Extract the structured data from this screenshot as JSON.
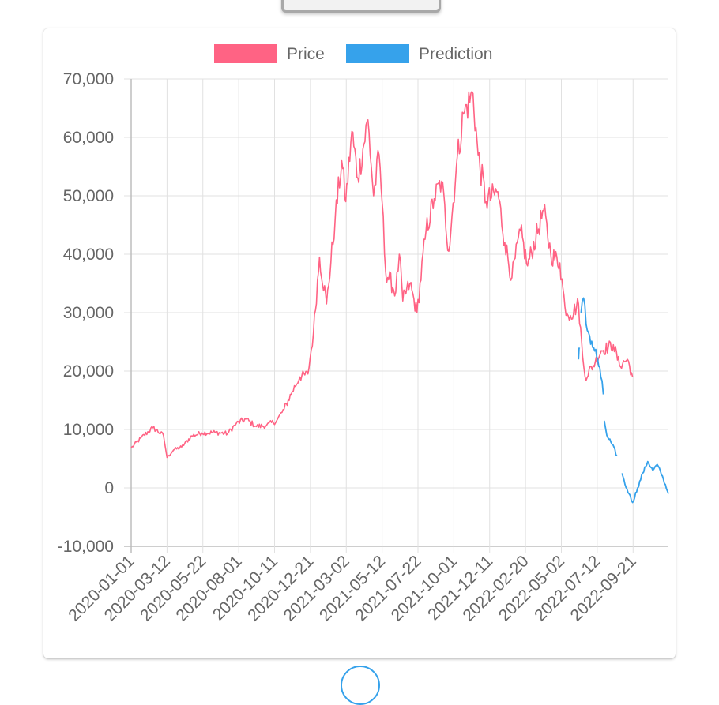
{
  "colors": {
    "price": "#ff6384",
    "prediction": "#36a2eb",
    "grid": "#e1e1e1",
    "text": "#666666"
  },
  "chart_data": {
    "type": "line",
    "title": "",
    "xlabel": "",
    "ylabel": "",
    "ylim": [
      -10000,
      70000
    ],
    "xlim": [
      "2020-01-01",
      "2022-11-30"
    ],
    "grid": true,
    "legend_position": "top",
    "y_ticks": [
      "70,000",
      "60,000",
      "50,000",
      "40,000",
      "30,000",
      "20,000",
      "10,000",
      "0",
      "-10,000"
    ],
    "x_ticks": [
      "2020-01-01",
      "2020-03-12",
      "2020-05-22",
      "2020-08-01",
      "2020-10-11",
      "2020-12-21",
      "2021-03-02",
      "2021-05-12",
      "2021-07-22",
      "2021-10-01",
      "2021-12-11",
      "2022-02-20",
      "2022-05-02",
      "2022-07-12",
      "2022-09-21"
    ],
    "series": [
      {
        "name": "Price",
        "color": "#ff6384",
        "points": [
          [
            "2020-01-01",
            6800
          ],
          [
            "2020-01-20",
            8500
          ],
          [
            "2020-02-13",
            10300
          ],
          [
            "2020-03-05",
            9000
          ],
          [
            "2020-03-12",
            5200
          ],
          [
            "2020-03-25",
            6500
          ],
          [
            "2020-04-10",
            7000
          ],
          [
            "2020-04-30",
            8900
          ],
          [
            "2020-05-20",
            9400
          ],
          [
            "2020-06-15",
            9500
          ],
          [
            "2020-07-10",
            9300
          ],
          [
            "2020-07-27",
            11000
          ],
          [
            "2020-08-15",
            11800
          ],
          [
            "2020-09-05",
            10500
          ],
          [
            "2020-09-25",
            10700
          ],
          [
            "2020-10-15",
            11500
          ],
          [
            "2020-10-30",
            13500
          ],
          [
            "2020-11-15",
            16500
          ],
          [
            "2020-11-30",
            19000
          ],
          [
            "2020-12-16",
            19500
          ],
          [
            "2020-12-27",
            26500
          ],
          [
            "2021-01-08",
            39500
          ],
          [
            "2021-01-22",
            31500
          ],
          [
            "2021-02-08",
            46000
          ],
          [
            "2021-02-21",
            56000
          ],
          [
            "2021-03-01",
            49000
          ],
          [
            "2021-03-13",
            61000
          ],
          [
            "2021-03-25",
            53000
          ],
          [
            "2021-04-14",
            63000
          ],
          [
            "2021-04-25",
            50000
          ],
          [
            "2021-05-06",
            57000
          ],
          [
            "2021-05-12",
            49000
          ],
          [
            "2021-05-19",
            37000
          ],
          [
            "2021-06-08",
            33500
          ],
          [
            "2021-06-15",
            40000
          ],
          [
            "2021-06-22",
            32000
          ],
          [
            "2021-07-06",
            35000
          ],
          [
            "2021-07-20",
            30000
          ],
          [
            "2021-08-07",
            44000
          ],
          [
            "2021-08-23",
            49500
          ],
          [
            "2021-09-07",
            52500
          ],
          [
            "2021-09-21",
            40500
          ],
          [
            "2021-10-06",
            55000
          ],
          [
            "2021-10-20",
            64000
          ],
          [
            "2021-11-08",
            67500
          ],
          [
            "2021-11-18",
            57000
          ],
          [
            "2021-12-04",
            49000
          ],
          [
            "2021-12-27",
            50700
          ],
          [
            "2022-01-10",
            42000
          ],
          [
            "2022-01-24",
            36000
          ],
          [
            "2022-02-10",
            44000
          ],
          [
            "2022-02-24",
            38000
          ],
          [
            "2022-03-28",
            47500
          ],
          [
            "2022-04-11",
            40000
          ],
          [
            "2022-04-29",
            38500
          ],
          [
            "2022-05-09",
            31000
          ],
          [
            "2022-05-20",
            29500
          ],
          [
            "2022-06-05",
            31500
          ],
          [
            "2022-06-13",
            22500
          ],
          [
            "2022-06-18",
            19000
          ],
          [
            "2022-07-08",
            21500
          ],
          [
            "2022-07-20",
            23500
          ],
          [
            "2022-08-13",
            24500
          ],
          [
            "2022-08-25",
            21000
          ],
          [
            "2022-09-10",
            22000
          ],
          [
            "2022-09-20",
            19000
          ]
        ]
      },
      {
        "name": "Prediction",
        "color": "#36a2eb",
        "segments": [
          [
            [
              "2022-06-05",
              22000
            ],
            [
              "2022-06-07",
              24000
            ]
          ],
          [
            [
              "2022-06-10",
              30000
            ],
            [
              "2022-06-15",
              32500
            ],
            [
              "2022-06-20",
              28000
            ],
            [
              "2022-06-27",
              26000
            ],
            [
              "2022-07-05",
              24000
            ],
            [
              "2022-07-13",
              22000
            ],
            [
              "2022-07-19",
              19000
            ],
            [
              "2022-07-24",
              16000
            ]
          ],
          [
            [
              "2022-07-26",
              11500
            ],
            [
              "2022-07-31",
              9000
            ],
            [
              "2022-08-10",
              7500
            ],
            [
              "2022-08-20",
              5500
            ]
          ],
          [
            [
              "2022-08-30",
              2500
            ],
            [
              "2022-09-05",
              600
            ],
            [
              "2022-09-13",
              -1000
            ],
            [
              "2022-09-20",
              -2500
            ],
            [
              "2022-09-30",
              0
            ],
            [
              "2022-10-10",
              2500
            ],
            [
              "2022-10-20",
              4500
            ],
            [
              "2022-10-30",
              3000
            ],
            [
              "2022-11-08",
              4000
            ],
            [
              "2022-11-20",
              1500
            ],
            [
              "2022-11-30",
              -1000
            ]
          ]
        ]
      }
    ]
  }
}
